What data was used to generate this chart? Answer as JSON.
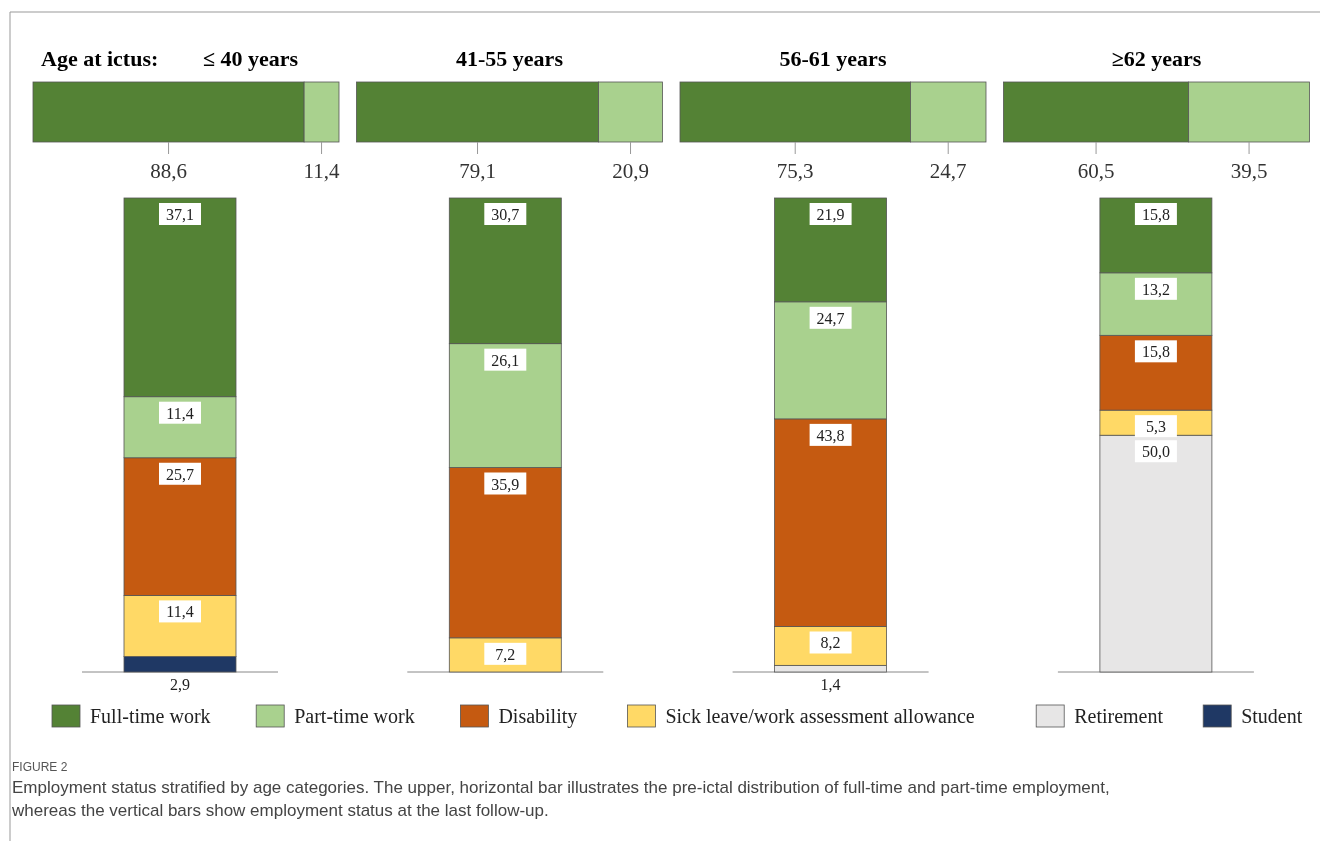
{
  "chart_data": [
    {
      "type": "bar",
      "orientation": "horizontal",
      "stacked": true,
      "title": "≤ 40 years",
      "annotations": [
        "Age at ictus:"
      ],
      "categories": [
        null
      ],
      "series": [
        {
          "color": "#548235",
          "values": [
            88.6
          ],
          "value_labels": [
            "88,6"
          ]
        },
        {
          "color": "#a9d18e",
          "values": [
            11.4
          ],
          "value_labels": [
            "11,4"
          ]
        }
      ]
    },
    {
      "type": "bar",
      "orientation": "horizontal",
      "stacked": true,
      "title": "41-55 years",
      "categories": [
        null
      ],
      "series": [
        {
          "color": "#548235",
          "values": [
            79.1
          ],
          "value_labels": [
            "79,1"
          ]
        },
        {
          "color": "#a9d18e",
          "values": [
            20.9
          ],
          "value_labels": [
            "20,9"
          ]
        }
      ]
    },
    {
      "type": "bar",
      "orientation": "horizontal",
      "stacked": true,
      "title": "56-61 years",
      "categories": [
        null
      ],
      "series": [
        {
          "color": "#548235",
          "values": [
            75.3
          ],
          "value_labels": [
            "75,3"
          ]
        },
        {
          "color": "#a9d18e",
          "values": [
            24.7
          ],
          "value_labels": [
            "24,7"
          ]
        }
      ]
    },
    {
      "type": "bar",
      "orientation": "horizontal",
      "stacked": true,
      "title": "≥62 years",
      "categories": [
        null
      ],
      "series": [
        {
          "color": "#548235",
          "values": [
            60.5
          ],
          "value_labels": [
            "60,5"
          ]
        },
        {
          "color": "#a9d18e",
          "values": [
            39.5
          ],
          "value_labels": [
            "39,5"
          ]
        }
      ]
    },
    {
      "type": "bar",
      "stacked": true,
      "categories": [
        null
      ],
      "legend": "bottom",
      "annotations": [
        "FIGURE 2",
        "Employment status stratified by age categories. The upper, horizontal bar illustrates the pre-ictal distribution of full-time and part-time employment, whereas the vertical bars show employment status at the last follow-up."
      ],
      "series": [
        {
          "name": "Student",
          "color": "#1f3864",
          "values": [
            2.9
          ],
          "value_labels": [
            "2,9"
          ]
        },
        {
          "color": "#ffd966",
          "values": [
            11.4
          ],
          "value_labels": [
            "11,4"
          ]
        },
        {
          "color": "#c55a11",
          "values": [
            25.7
          ],
          "value_labels": [
            "25,7"
          ]
        },
        {
          "color": "#a9d18e",
          "values": [
            11.4
          ],
          "value_labels": [
            "11,4"
          ]
        },
        {
          "color": "#548235",
          "values": [
            37.1
          ],
          "value_labels": [
            "37,1"
          ]
        }
      ]
    },
    {
      "type": "bar",
      "stacked": true,
      "categories": [
        null
      ],
      "series": [
        {
          "color": "#ffd966",
          "values": [
            7.2
          ],
          "value_labels": [
            "7,2"
          ]
        },
        {
          "color": "#c55a11",
          "values": [
            35.9
          ],
          "value_labels": [
            "35,9"
          ]
        },
        {
          "color": "#a9d18e",
          "values": [
            26.1
          ],
          "value_labels": [
            "26,1"
          ]
        },
        {
          "color": "#548235",
          "values": [
            30.7
          ],
          "value_labels": [
            "30,7"
          ]
        }
      ]
    },
    {
      "type": "bar",
      "stacked": true,
      "categories": [
        null
      ],
      "series": [
        {
          "color": "#e7e6e6",
          "values": [
            1.4
          ],
          "value_labels": [
            "1,4"
          ]
        },
        {
          "color": "#ffd966",
          "values": [
            8.2
          ],
          "value_labels": [
            "8,2"
          ]
        },
        {
          "color": "#c55a11",
          "values": [
            43.8
          ],
          "value_labels": [
            "43,8"
          ]
        },
        {
          "color": "#a9d18e",
          "values": [
            24.7
          ],
          "value_labels": [
            "24,7"
          ]
        },
        {
          "color": "#548235",
          "values": [
            21.9
          ],
          "value_labels": [
            "21,9"
          ]
        }
      ]
    },
    {
      "type": "bar",
      "stacked": true,
      "categories": [
        null
      ],
      "legend": "bottom",
      "series": [
        {
          "name": "Retirement",
          "color": "#e7e6e6",
          "values": [
            50.0
          ],
          "value_labels": [
            "50,0"
          ]
        },
        {
          "name": "Sick leave/work assessment allowance",
          "color": "#ffd966",
          "values": [
            5.3
          ],
          "value_labels": [
            "5,3"
          ]
        },
        {
          "name": "Disability",
          "color": "#c55a11",
          "values": [
            15.8
          ],
          "value_labels": [
            "15,8"
          ]
        },
        {
          "name": "Part-time work",
          "color": "#a9d18e",
          "values": [
            13.2
          ],
          "value_labels": [
            "13,2"
          ]
        },
        {
          "name": "Full-time work",
          "color": "#548235",
          "values": [
            15.8
          ],
          "value_labels": [
            "15,8"
          ]
        }
      ]
    }
  ]
}
